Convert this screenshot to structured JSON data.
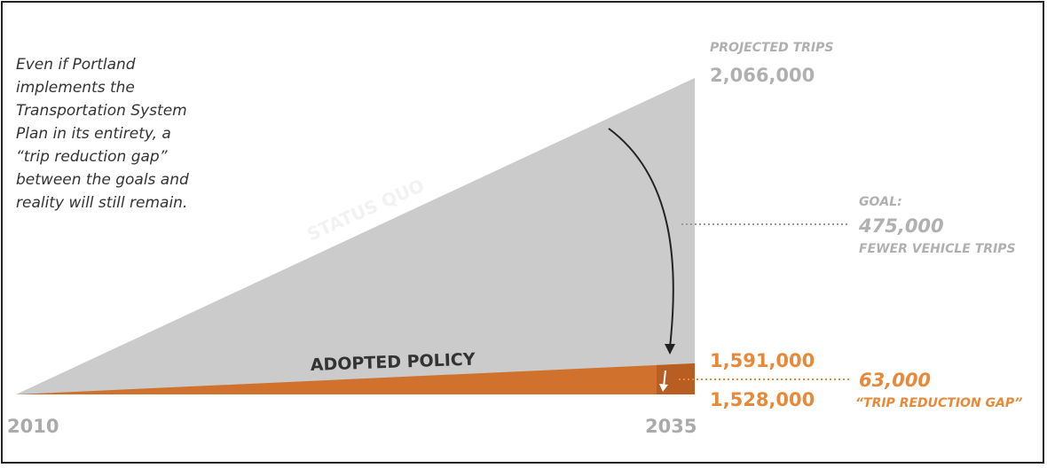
{
  "description": [
    "Even if Portland",
    "implements the",
    "Transportation System",
    "Plan in its entirety, a",
    "“trip reduction gap”",
    "between the goals and",
    "reality will still remain."
  ],
  "labels": {
    "status_quo": "STATUS QUO",
    "adopted_policy": "ADOPTED POLICY",
    "projected_trips": "PROJECTED TRIPS",
    "projected_value": "2,066,000",
    "goal": "GOAL:",
    "goal_value": "475,000",
    "goal_caption": "FEWER VEHICLE TRIPS",
    "policy_value": "1,591,000",
    "adjusted_value": "1,528,000",
    "gap_value": "63,000",
    "gap_caption": "“TRIP REDUCTION GAP”",
    "start_year": "2010",
    "end_year": "2035"
  }
}
